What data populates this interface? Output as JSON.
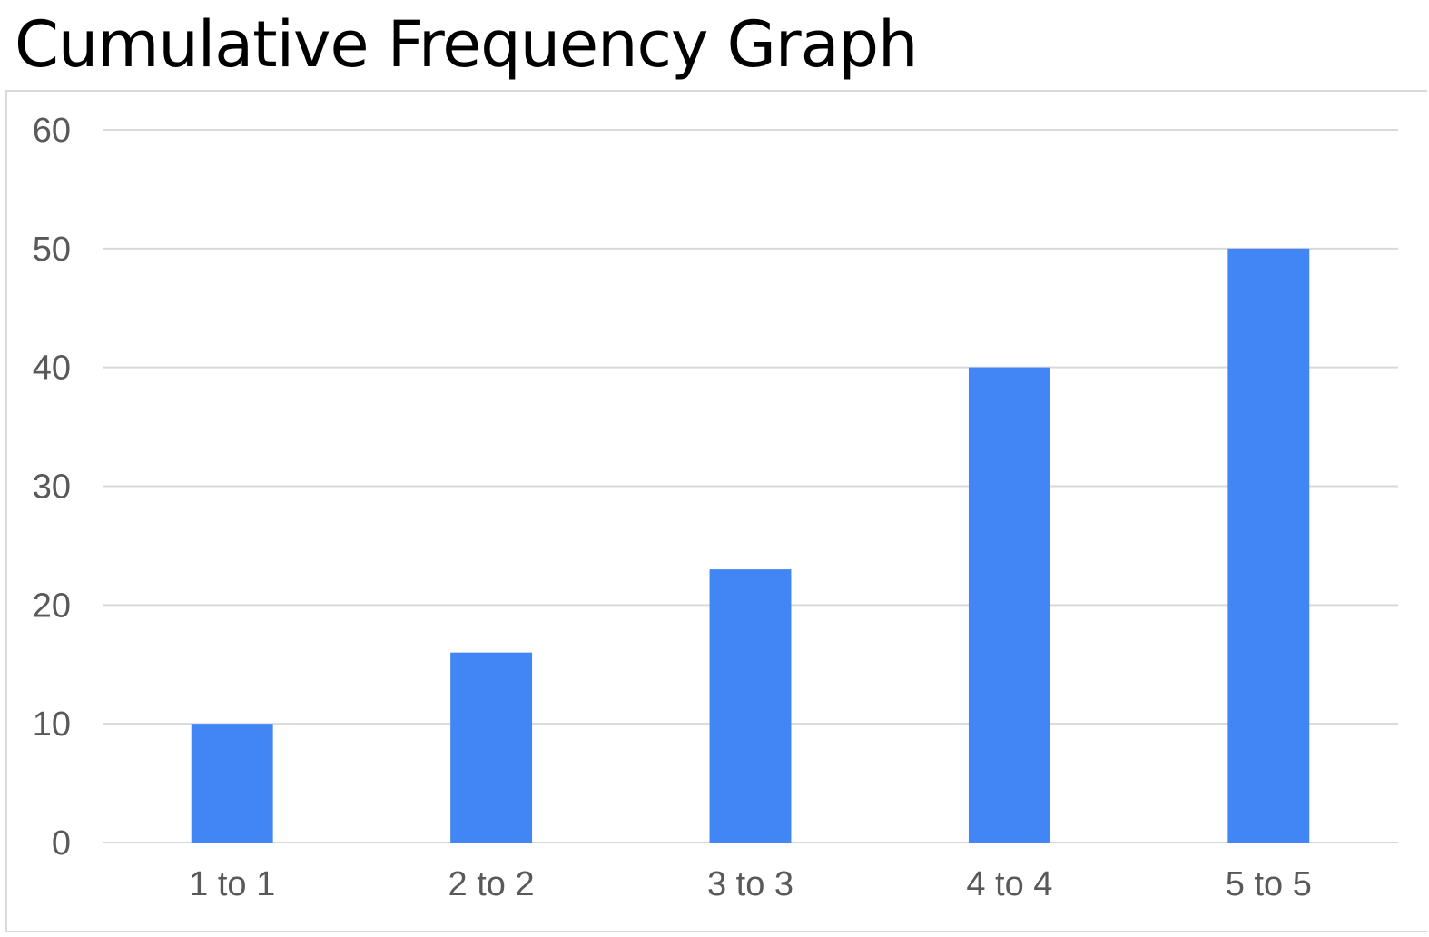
{
  "chart_data": {
    "type": "bar",
    "title": "Cumulative Frequency Graph",
    "categories": [
      "1 to 1",
      "2 to 2",
      "3 to 3",
      "4 to 4",
      "5 to 5"
    ],
    "values": [
      10,
      16,
      23,
      40,
      50
    ],
    "ylim": [
      0,
      60
    ],
    "yticks": [
      "0",
      "10",
      "20",
      "30",
      "40",
      "50",
      "60"
    ],
    "xlabel": "",
    "ylabel": "",
    "grid": true,
    "legend": "none",
    "bar_color": "#4285f4",
    "grid_color": "#d9d9d9",
    "label_color": "#595959"
  }
}
